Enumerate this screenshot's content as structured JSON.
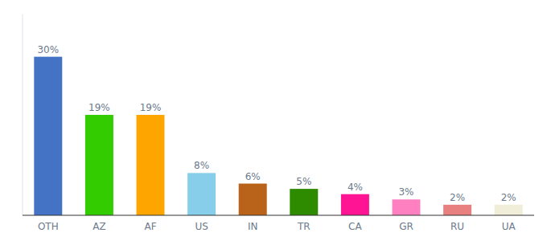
{
  "chart_data": {
    "type": "bar",
    "categories": [
      "OTH",
      "AZ",
      "AF",
      "US",
      "IN",
      "TR",
      "CA",
      "GR",
      "RU",
      "UA"
    ],
    "values": [
      30,
      19,
      19,
      8,
      6,
      5,
      4,
      3,
      2,
      2
    ],
    "value_labels": [
      "30%",
      "19%",
      "19%",
      "8%",
      "6%",
      "5%",
      "4%",
      "3%",
      "2%",
      "2%"
    ],
    "colors": [
      "#4472C4",
      "#33CC00",
      "#FFA500",
      "#87CEEB",
      "#B8621A",
      "#2E8B00",
      "#FF1493",
      "#FF80C0",
      "#E88080",
      "#F0EDD8"
    ],
    "ylim": [
      0,
      38
    ],
    "data_labels": true,
    "tick_labels": "x"
  }
}
